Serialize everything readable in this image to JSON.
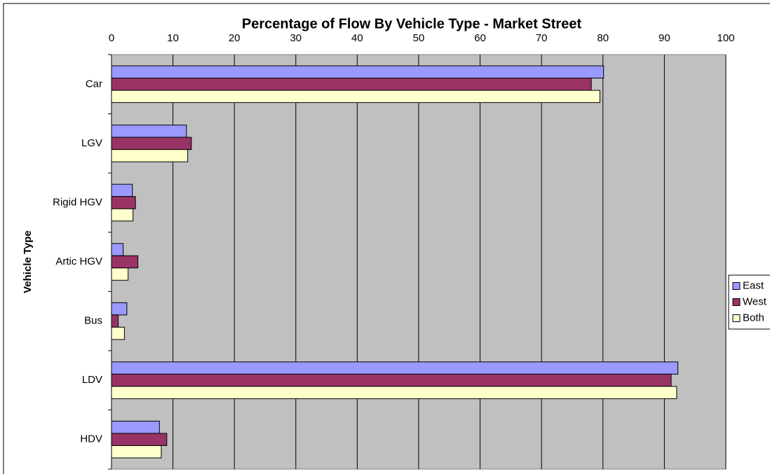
{
  "chart_data": {
    "type": "bar",
    "orientation": "horizontal",
    "title": "Percentage of Flow By Vehicle Type - Market Street",
    "y_label": "Vehicle Type",
    "categories": [
      "Car",
      "LGV",
      "Rigid HGV",
      "Artic HGV",
      "Bus",
      "LDV",
      "HDV"
    ],
    "series": [
      {
        "name": "East",
        "color": "#9999ff",
        "values": [
          80.1,
          12.2,
          3.4,
          1.9,
          2.5,
          92.2,
          7.8
        ]
      },
      {
        "name": "West",
        "color": "#993366",
        "values": [
          78.1,
          13.0,
          3.9,
          4.3,
          1.1,
          91.1,
          9.0
        ]
      },
      {
        "name": "Both",
        "color": "#ffffcc",
        "values": [
          79.5,
          12.4,
          3.5,
          2.7,
          2.1,
          92.0,
          8.1
        ]
      }
    ],
    "xlim": [
      0,
      100
    ],
    "xticks": [
      0,
      10,
      20,
      30,
      40,
      50,
      60,
      70,
      80,
      90,
      100
    ],
    "grid": true,
    "legend": "right",
    "plot_background": "#c0c0c0"
  }
}
